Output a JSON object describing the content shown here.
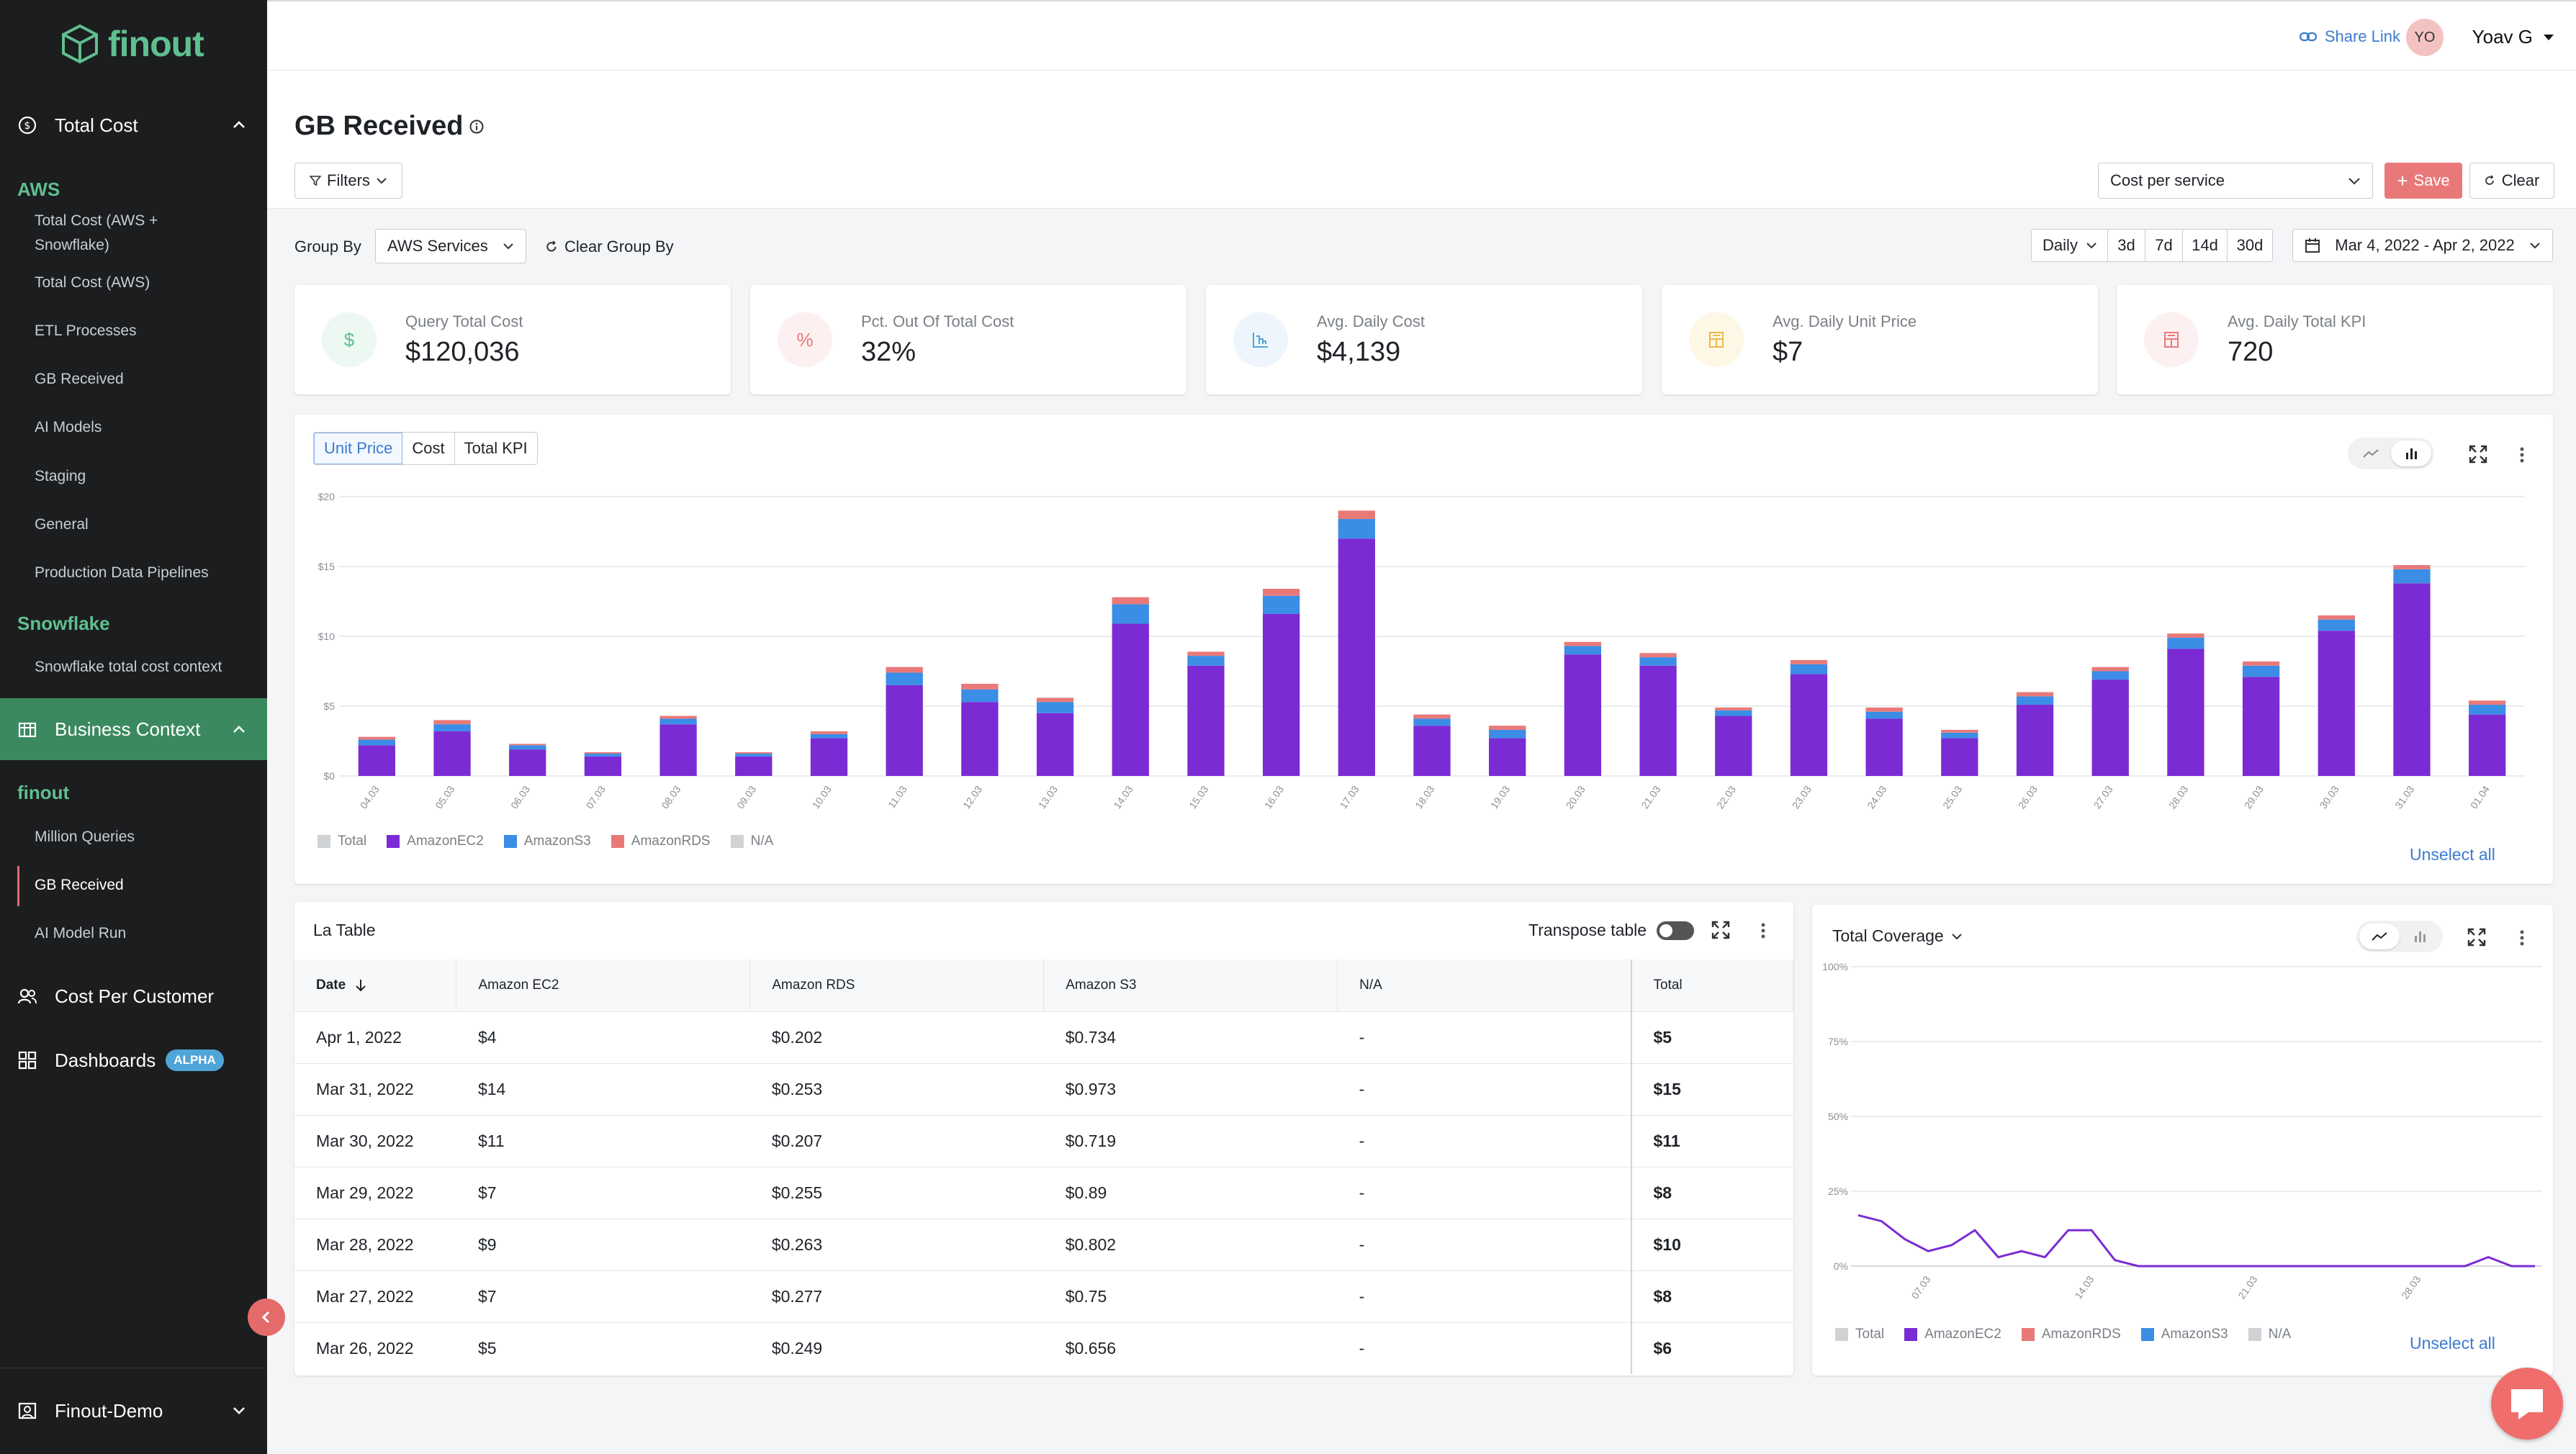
{
  "app": {
    "logo_text": "finout"
  },
  "sidebar": {
    "total_cost": "Total Cost",
    "aws_title": "AWS",
    "aws_items": [
      "Total Cost (AWS +",
      "Snowflake)",
      "Total Cost (AWS)",
      "ETL Processes",
      "GB Received",
      "AI Models",
      "Staging",
      "General",
      "Production Data Pipelines"
    ],
    "snowflake_title": "Snowflake",
    "snowflake_items": [
      "Snowflake total cost context"
    ],
    "business_context": "Business Context",
    "finout_title": "finout",
    "finout_items": [
      "Million Queries",
      "GB Received",
      "AI Model Run"
    ],
    "cost_per_customer": "Cost Per Customer",
    "dashboards": "Dashboards",
    "alpha_badge": "ALPHA",
    "account": "Finout-Demo"
  },
  "topbar": {
    "share_link": "Share Link",
    "avatar_initials": "YO",
    "user_name": "Yoav G"
  },
  "header": {
    "title": "GB Received",
    "filters": "Filters",
    "view_select": "Cost per service",
    "save": "Save",
    "clear": "Clear",
    "group_by_label": "Group By",
    "group_by_value": "AWS Services",
    "clear_group_by": "Clear Group By",
    "granularity": "Daily",
    "ranges": [
      "3d",
      "7d",
      "14d",
      "30d"
    ],
    "date_range": "Mar 4, 2022 - Apr 2, 2022"
  },
  "kpis": [
    {
      "label": "Query Total Cost",
      "value": "$120,036",
      "icon": "$",
      "color": "#5fbf8f",
      "bg": "#eef8f2"
    },
    {
      "label": "Pct. Out Of Total Cost",
      "value": "32%",
      "icon": "%",
      "color": "#e97979",
      "bg": "#fdf0f0"
    },
    {
      "label": "Avg. Daily Cost",
      "value": "$4,139",
      "icon": "chart-icon",
      "color": "#4fa4d8",
      "bg": "#eef5fc"
    },
    {
      "label": "Avg. Daily Unit Price",
      "value": "$7",
      "icon": "calculator-icon",
      "color": "#e9b949",
      "bg": "#fdf7e6"
    },
    {
      "label": "Avg. Daily Total KPI",
      "value": "720",
      "icon": "calculator-icon",
      "color": "#e97979",
      "bg": "#fdf0f0"
    }
  ],
  "chart_tabs": [
    "Unit Price",
    "Cost",
    "Total KPI"
  ],
  "chart_data": [
    {
      "type": "bar",
      "stacked": true,
      "title": "Unit Price",
      "ylim": [
        0,
        20
      ],
      "yticks": [
        "$0",
        "$5",
        "$10",
        "$15",
        "$20"
      ],
      "categories": [
        "04.03",
        "05.03",
        "06.03",
        "07.03",
        "08.03",
        "09.03",
        "10.03",
        "11.03",
        "12.03",
        "13.03",
        "14.03",
        "15.03",
        "16.03",
        "17.03",
        "18.03",
        "19.03",
        "20.03",
        "21.03",
        "22.03",
        "23.03",
        "24.03",
        "25.03",
        "26.03",
        "27.03",
        "28.03",
        "29.03",
        "30.03",
        "31.03",
        "01.04"
      ],
      "series": [
        {
          "name": "AmazonEC2",
          "color": "#7b2bd4",
          "values": [
            2.2,
            3.2,
            1.9,
            1.4,
            3.7,
            1.4,
            2.7,
            6.5,
            5.3,
            4.5,
            10.9,
            7.9,
            11.6,
            17.0,
            3.6,
            2.7,
            8.7,
            7.9,
            4.3,
            7.3,
            4.1,
            2.7,
            5.1,
            6.9,
            9.1,
            7.1,
            10.4,
            13.8,
            4.4
          ]
        },
        {
          "name": "AmazonS3",
          "color": "#3b8de6",
          "values": [
            0.4,
            0.5,
            0.3,
            0.2,
            0.4,
            0.2,
            0.3,
            0.9,
            0.9,
            0.8,
            1.4,
            0.7,
            1.3,
            1.4,
            0.5,
            0.6,
            0.6,
            0.6,
            0.4,
            0.7,
            0.5,
            0.4,
            0.6,
            0.6,
            0.8,
            0.8,
            0.8,
            1.0,
            0.7
          ]
        },
        {
          "name": "AmazonRDS",
          "color": "#e97979",
          "values": [
            0.2,
            0.3,
            0.1,
            0.1,
            0.2,
            0.1,
            0.2,
            0.4,
            0.4,
            0.3,
            0.5,
            0.3,
            0.5,
            0.6,
            0.3,
            0.3,
            0.3,
            0.3,
            0.2,
            0.3,
            0.3,
            0.2,
            0.3,
            0.3,
            0.3,
            0.3,
            0.3,
            0.3,
            0.3
          ]
        }
      ],
      "legend": [
        "Total",
        "AmazonEC2",
        "AmazonS3",
        "AmazonRDS",
        "N/A"
      ]
    },
    {
      "type": "line",
      "title": "Total Coverage",
      "ylim": [
        0,
        100
      ],
      "yticks": [
        "0%",
        "25%",
        "50%",
        "75%",
        "100%"
      ],
      "xticks": [
        "07.03",
        "14.03",
        "21.03",
        "28.03"
      ],
      "series": [
        {
          "name": "AmazonEC2",
          "color": "#7b2bd4",
          "values": [
            17,
            15,
            9,
            5,
            7,
            12,
            3,
            5,
            3,
            12,
            12,
            2,
            0,
            0,
            0,
            0,
            0,
            0,
            0,
            0,
            0,
            0,
            0,
            0,
            0,
            0,
            0,
            3,
            0,
            0
          ]
        }
      ],
      "legend": [
        "Total",
        "AmazonEC2",
        "AmazonRDS",
        "AmazonS3",
        "N/A"
      ]
    }
  ],
  "legend_colors": {
    "Total": "#d0d3d6",
    "AmazonEC2": "#7b2bd4",
    "AmazonS3": "#3b8de6",
    "AmazonRDS": "#e97979",
    "N/A": "#d0d3d6"
  },
  "chart": {
    "unselect_all": "Unselect all"
  },
  "table": {
    "title": "La Table",
    "transpose": "Transpose table",
    "columns": [
      "Date",
      "Amazon EC2",
      "Amazon RDS",
      "Amazon S3",
      "N/A",
      "Total"
    ],
    "rows": [
      [
        "Apr 1, 2022",
        "$4",
        "$0.202",
        "$0.734",
        "-",
        "$5"
      ],
      [
        "Mar 31, 2022",
        "$14",
        "$0.253",
        "$0.973",
        "-",
        "$15"
      ],
      [
        "Mar 30, 2022",
        "$11",
        "$0.207",
        "$0.719",
        "-",
        "$11"
      ],
      [
        "Mar 29, 2022",
        "$7",
        "$0.255",
        "$0.89",
        "-",
        "$8"
      ],
      [
        "Mar 28, 2022",
        "$9",
        "$0.263",
        "$0.802",
        "-",
        "$10"
      ],
      [
        "Mar 27, 2022",
        "$7",
        "$0.277",
        "$0.75",
        "-",
        "$8"
      ],
      [
        "Mar 26, 2022",
        "$5",
        "$0.249",
        "$0.656",
        "-",
        "$6"
      ]
    ]
  },
  "coverage": {
    "title": "Total Coverage",
    "unselect_all": "Unselect all"
  }
}
